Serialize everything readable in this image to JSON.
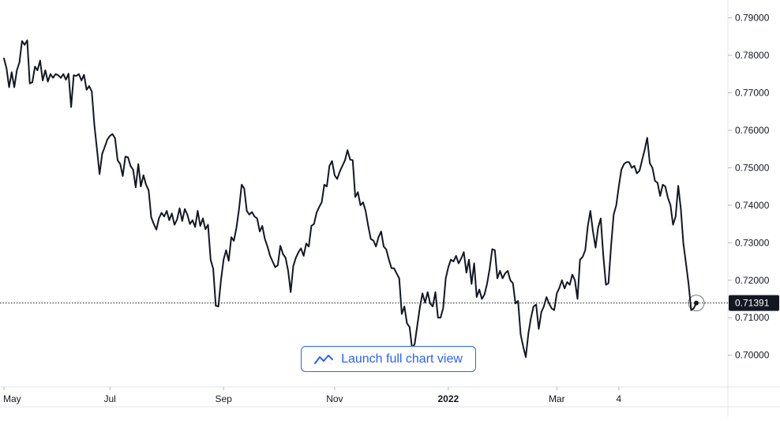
{
  "chart_data": {
    "type": "line",
    "colors": {
      "line": "#131722",
      "grid": "#e0e3eb",
      "text": "#131722",
      "price_tag_bg": "#131722",
      "price_tag_text": "#ffffff",
      "button_accent": "#2962ff"
    },
    "ylim": [
      0.6915,
      0.7935
    ],
    "y_ticks": [
      "0.70000",
      "0.71000",
      "0.72000",
      "0.73000",
      "0.74000",
      "0.75000",
      "0.76000",
      "0.77000",
      "0.78000",
      "0.79000"
    ],
    "x_ticks": [
      {
        "label": "May",
        "i": 0
      },
      {
        "label": "Jul",
        "i": 41
      },
      {
        "label": "Sep",
        "i": 85
      },
      {
        "label": "Nov",
        "i": 128
      },
      {
        "label": "2022",
        "i": 172,
        "bold": true
      },
      {
        "label": "Mar",
        "i": 214
      },
      {
        "label": "4",
        "i": 238
      }
    ],
    "last_price": "0.71391",
    "series": [
      {
        "values": [
          0.7792,
          0.7765,
          0.7715,
          0.7755,
          0.7715,
          0.776,
          0.7781,
          0.7838,
          0.7828,
          0.784,
          0.7725,
          0.7728,
          0.777,
          0.776,
          0.7786,
          0.7733,
          0.776,
          0.773,
          0.775,
          0.774,
          0.775,
          0.7747,
          0.774,
          0.775,
          0.7735,
          0.7751,
          0.7662,
          0.7747,
          0.7745,
          0.775,
          0.7733,
          0.7748,
          0.7708,
          0.7718,
          0.7703,
          0.7615,
          0.755,
          0.7483,
          0.7537,
          0.7555,
          0.7575,
          0.7585,
          0.759,
          0.7579,
          0.752,
          0.751,
          0.7478,
          0.753,
          0.7528,
          0.7505,
          0.7495,
          0.7448,
          0.751,
          0.745,
          0.748,
          0.7455,
          0.744,
          0.7368,
          0.735,
          0.7335,
          0.7365,
          0.738,
          0.737,
          0.7385,
          0.736,
          0.7378,
          0.7348,
          0.7362,
          0.7392,
          0.7358,
          0.739,
          0.7375,
          0.735,
          0.736,
          0.7342,
          0.7385,
          0.7345,
          0.7365,
          0.7336,
          0.7348,
          0.7255,
          0.723,
          0.7132,
          0.713,
          0.72,
          0.7255,
          0.728,
          0.7252,
          0.7315,
          0.7305,
          0.734,
          0.739,
          0.7455,
          0.7445,
          0.7385,
          0.7375,
          0.7382,
          0.737,
          0.7365,
          0.733,
          0.7345,
          0.731,
          0.729,
          0.7265,
          0.725,
          0.7235,
          0.724,
          0.7292,
          0.727,
          0.726,
          0.7225,
          0.7168,
          0.7238,
          0.726,
          0.7275,
          0.7285,
          0.7265,
          0.7298,
          0.729,
          0.7345,
          0.735,
          0.738,
          0.7395,
          0.7408,
          0.7455,
          0.745,
          0.7505,
          0.7518,
          0.748,
          0.747,
          0.749,
          0.7505,
          0.752,
          0.7547,
          0.7522,
          0.752,
          0.7422,
          0.7435,
          0.74,
          0.7408,
          0.7385,
          0.7345,
          0.731,
          0.7306,
          0.729,
          0.7315,
          0.733,
          0.729,
          0.7282,
          0.7255,
          0.7232,
          0.7232,
          0.7218,
          0.7205,
          0.711,
          0.713,
          0.7085,
          0.7075,
          0.7018,
          0.703,
          0.708,
          0.7128,
          0.7165,
          0.714,
          0.7168,
          0.7138,
          0.713,
          0.7168,
          0.71,
          0.71,
          0.7125,
          0.7205,
          0.7235,
          0.7255,
          0.725,
          0.7265,
          0.7245,
          0.7258,
          0.7275,
          0.722,
          0.7255,
          0.719,
          0.7245,
          0.7155,
          0.7175,
          0.715,
          0.7162,
          0.719,
          0.723,
          0.7283,
          0.728,
          0.7205,
          0.7225,
          0.7205,
          0.7218,
          0.7225,
          0.72,
          0.7192,
          0.7138,
          0.7145,
          0.7055,
          0.7022,
          0.6995,
          0.7058,
          0.71,
          0.713,
          0.7135,
          0.707,
          0.7115,
          0.713,
          0.7155,
          0.7138,
          0.7125,
          0.712,
          0.7165,
          0.718,
          0.72,
          0.7178,
          0.7195,
          0.7188,
          0.7215,
          0.72,
          0.715,
          0.7255,
          0.7262,
          0.728,
          0.7345,
          0.7385,
          0.733,
          0.7287,
          0.734,
          0.7365,
          0.7265,
          0.7188,
          0.7192,
          0.729,
          0.7375,
          0.74,
          0.745,
          0.7495,
          0.751,
          0.7515,
          0.7515,
          0.75,
          0.7505,
          0.7485,
          0.7492,
          0.752,
          0.7548,
          0.758,
          0.7512,
          0.75,
          0.7465,
          0.746,
          0.7425,
          0.7455,
          0.745,
          0.742,
          0.74,
          0.7348,
          0.737,
          0.7452,
          0.739,
          0.7298,
          0.7245,
          0.719,
          0.712,
          0.7125,
          0.7139
        ]
      }
    ]
  },
  "button": {
    "label": "Launch full chart view",
    "icon": "line-chart-icon"
  }
}
